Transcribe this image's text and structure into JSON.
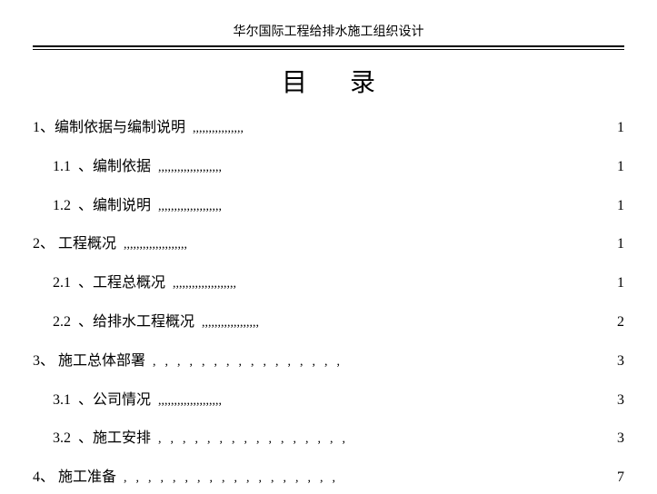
{
  "header": {
    "title": "华尔国际工程给排水施工组织设计"
  },
  "toc": {
    "title": "目 录",
    "entries": [
      {
        "level": 0,
        "num": "1、",
        "label": "编制依据与编制说明",
        "dots": ",,,,,,,,,,,,,,,,",
        "dots_wide": false,
        "page": "1"
      },
      {
        "level": 1,
        "num": "1.1  、",
        "label": "编制依据",
        "dots": ",,,,,,,,,,,,,,,,,,,,",
        "dots_wide": false,
        "page": "1"
      },
      {
        "level": 1,
        "num": "1.2  、",
        "label": "编制说明",
        "dots": ",,,,,,,,,,,,,,,,,,,,",
        "dots_wide": false,
        "page": "1"
      },
      {
        "level": 0,
        "num": "2、 ",
        "label": "工程概况",
        "dots": ",,,,,,,,,,,,,,,,,,,,",
        "dots_wide": false,
        "page": "1"
      },
      {
        "level": 1,
        "num": "2.1  、",
        "label": "工程总概况",
        "dots": ",,,,,,,,,,,,,,,,,,,,",
        "dots_wide": false,
        "page": "1"
      },
      {
        "level": 1,
        "num": "2.2  、",
        "label": "给排水工程概况",
        "dots": ",,,,,,,,,,,,,,,,,,",
        "dots_wide": false,
        "page": "2"
      },
      {
        "level": 0,
        "num": "3、 ",
        "label": "施工总体部署",
        "dots": ",,,,,,,,,,,,,,,,",
        "dots_wide": true,
        "page": "3"
      },
      {
        "level": 1,
        "num": "3.1  、",
        "label": "公司情况",
        "dots": ",,,,,,,,,,,,,,,,,,,,",
        "dots_wide": false,
        "page": "3"
      },
      {
        "level": 1,
        "num": "3.2  、",
        "label": "施工安排",
        "dots": ",,,,,,,,,,,,,,,,",
        "dots_wide": true,
        "page": "3"
      },
      {
        "level": 0,
        "num": "4、 ",
        "label": "施工准备",
        "dots": ",,,,,,,,,,,,,,,,,,",
        "dots_wide": true,
        "page": "7"
      }
    ]
  }
}
